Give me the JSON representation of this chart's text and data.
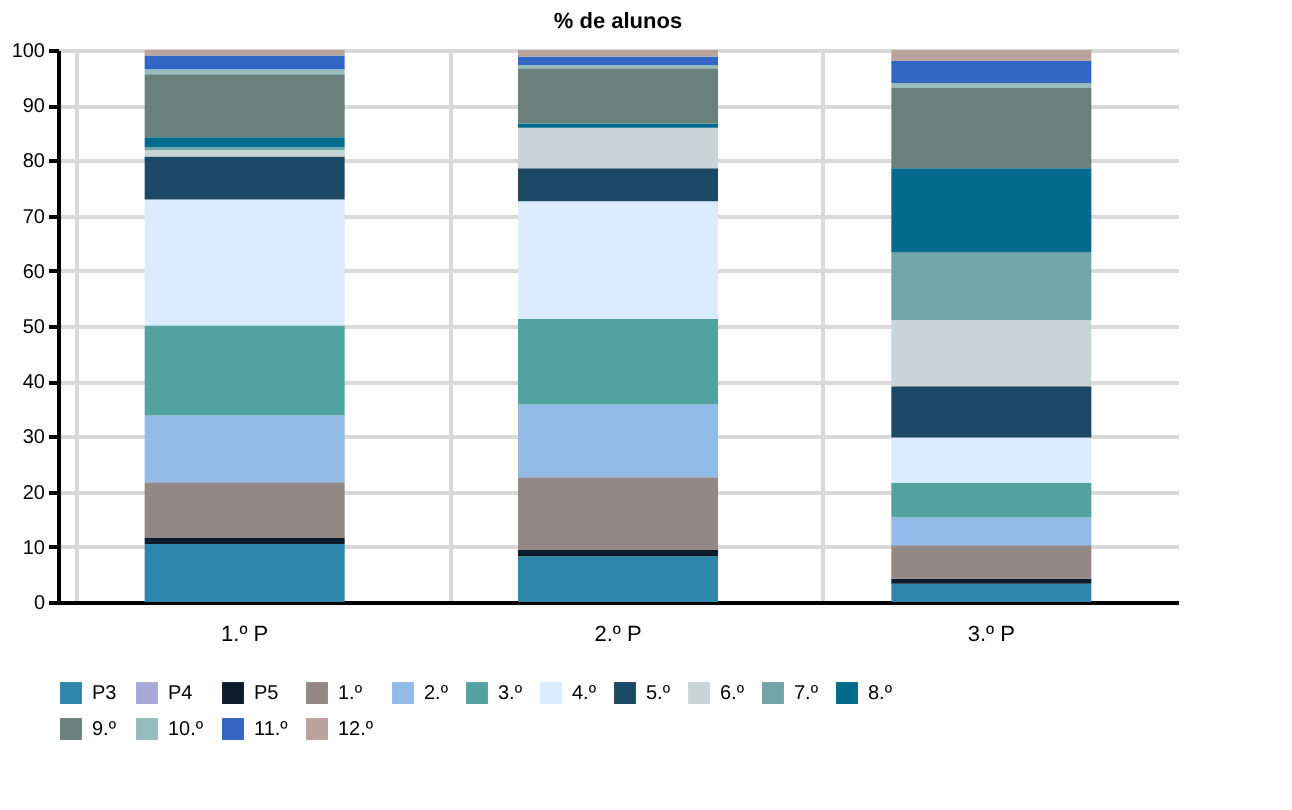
{
  "chart_data": {
    "type": "bar",
    "stacked": true,
    "title": "% de alunos",
    "categories": [
      "1.º P",
      "2.º P",
      "3.º P"
    ],
    "series": [
      {
        "name": "P3",
        "color": "#2e86ab",
        "values": [
          10.5,
          8.3,
          3.3
        ]
      },
      {
        "name": "P4",
        "color": "#a9a9d8",
        "values": [
          0,
          0,
          0
        ]
      },
      {
        "name": "P5",
        "color": "#0d1b2a",
        "values": [
          1.2,
          1.2,
          0.9
        ]
      },
      {
        "name": "1.º",
        "color": "#938886",
        "values": [
          10.0,
          13.1,
          6.1
        ]
      },
      {
        "name": "2.º",
        "color": "#92bbe8",
        "values": [
          12.1,
          13.2,
          5.0
        ]
      },
      {
        "name": "3.º",
        "color": "#52a3a0",
        "values": [
          16.3,
          15.5,
          6.3
        ]
      },
      {
        "name": "4.º",
        "color": "#dcecff",
        "values": [
          22.8,
          21.3,
          8.2
        ]
      },
      {
        "name": "5.º",
        "color": "#1c4a66",
        "values": [
          7.8,
          6.0,
          9.3
        ]
      },
      {
        "name": "6.º",
        "color": "#c9d4d6",
        "values": [
          1.2,
          7.3,
          12.0
        ]
      },
      {
        "name": "7.º",
        "color": "#72a5a8",
        "values": [
          0.5,
          0,
          12.2
        ]
      },
      {
        "name": "8.º",
        "color": "#036b8e",
        "values": [
          1.8,
          0.8,
          15.3
        ]
      },
      {
        "name": "9.º",
        "color": "#6a807b",
        "values": [
          11.4,
          10.0,
          14.5
        ]
      },
      {
        "name": "10.º",
        "color": "#96bcbe",
        "values": [
          0.9,
          0.6,
          0.9
        ]
      },
      {
        "name": "11.º",
        "color": "#3366c4",
        "values": [
          2.5,
          1.5,
          4.0
        ]
      },
      {
        "name": "12.º",
        "color": "#b9a39c",
        "values": [
          1.0,
          1.2,
          2.0
        ]
      }
    ],
    "ylim": [
      0,
      100
    ],
    "yticks": [
      0,
      10,
      20,
      30,
      40,
      50,
      60,
      70,
      80,
      90,
      100
    ],
    "grid": true,
    "legend": "bottom"
  }
}
